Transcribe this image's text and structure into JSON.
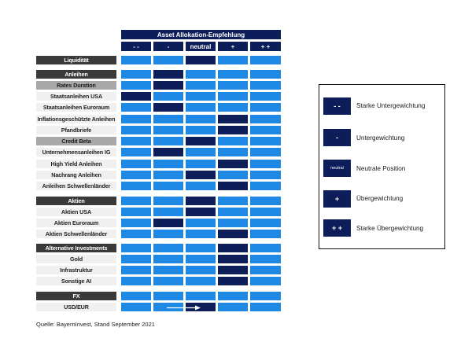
{
  "header": {
    "title": "Asset Allokation-Empfehlung",
    "columns": [
      "- -",
      "-",
      "neutral",
      "+",
      "+ +"
    ]
  },
  "rows": [
    {
      "label": "Liquidität",
      "style": "grp",
      "position": 2
    },
    {
      "label": "Anleihen",
      "style": "grp",
      "position": 1
    },
    {
      "label": "Rates Duration",
      "style": "cat",
      "position": 1
    },
    {
      "label": "Staatsanleihen USA",
      "style": "sub",
      "position": 0
    },
    {
      "label": "Staatsanleihen Euroraum",
      "style": "sub",
      "position": 1
    },
    {
      "label": "Inflationsgeschützte Anleihen",
      "style": "sub",
      "position": 3
    },
    {
      "label": "Pfandbriefe",
      "style": "sub",
      "position": 3
    },
    {
      "label": "Credit Beta",
      "style": "cat",
      "position": 2
    },
    {
      "label": "Unternehmensanleihen IG",
      "style": "sub",
      "position": 1
    },
    {
      "label": "High Yield Anleihen",
      "style": "sub",
      "position": 3
    },
    {
      "label": "Nachrang Anleihen",
      "style": "sub",
      "position": 2
    },
    {
      "label": "Anleihen Schwellenländer",
      "style": "sub",
      "position": 3
    },
    {
      "label": "Aktien",
      "style": "grp",
      "position": 2
    },
    {
      "label": "Aktien USA",
      "style": "sub",
      "position": 2
    },
    {
      "label": "Aktien Euroraum",
      "style": "sub",
      "position": 1
    },
    {
      "label": "Aktien Schwellenländer",
      "style": "sub",
      "position": 3
    },
    {
      "label": "Alternative Investments",
      "style": "grp",
      "position": 3
    },
    {
      "label": "Gold",
      "style": "sub",
      "position": 3
    },
    {
      "label": "Infrastruktur",
      "style": "sub",
      "position": 3
    },
    {
      "label": "Sonstige AI",
      "style": "sub",
      "position": 3
    },
    {
      "label": "FX",
      "style": "grp",
      "position": null
    },
    {
      "label": "USD/EUR",
      "style": "sub",
      "position": 2,
      "arrow_from": 1
    }
  ],
  "legend": [
    {
      "symbol": "- -",
      "text": "Starke Untergewichtung"
    },
    {
      "symbol": "-",
      "text": "Untergewichtung"
    },
    {
      "symbol": "neutral",
      "text": "Neutrale Position"
    },
    {
      "symbol": "+",
      "text": "Übergewichtung"
    },
    {
      "symbol": "+ +",
      "text": "Starke Übergewichtung"
    }
  ],
  "source": "Quelle: BayernInvest, Stand September 2021",
  "colors": {
    "dark": "#0c1d59",
    "light": "#1e88e5",
    "group_label": "#3a3a3a",
    "category_label": "#a8a8a8"
  }
}
